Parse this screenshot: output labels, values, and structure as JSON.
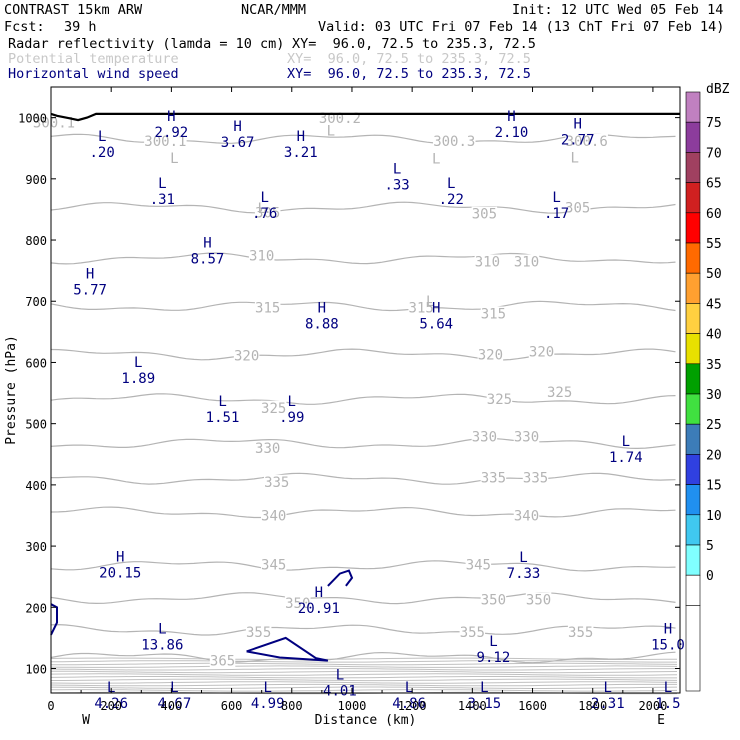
{
  "header": {
    "model": "CONTRAST 15km ARW",
    "org": "NCAR/MMM",
    "init": "Init: 12 UTC Wed 05 Feb 14",
    "fcst_label": "Fcst:",
    "fcst_value": "39 h",
    "valid": "Valid: 03 UTC Fri 07 Feb 14 (13 ChT Fri 07 Feb 14)",
    "fields": [
      {
        "name": "Radar reflectivity (lamda = 10 cm)",
        "xy": "XY=  96.0, 72.5 to 235.3, 72.5",
        "color": "#000000"
      },
      {
        "name": "Potential temperature",
        "xy": "XY=  96.0, 72.5 to 235.3, 72.5",
        "color": "#c8c8c8"
      },
      {
        "name": "Horizontal wind speed",
        "xy": "XY=  96.0, 72.5 to 235.3, 72.5",
        "color": "#000080"
      }
    ]
  },
  "chart_data": {
    "type": "cross-section",
    "xlabel": "Distance (km)",
    "ylabel": "Pressure (hPa)",
    "xlim": [
      0,
      2090
    ],
    "ylim": [
      1050,
      60
    ],
    "x_ticks": [
      0,
      200,
      400,
      600,
      800,
      1000,
      1200,
      1400,
      1600,
      1800,
      2000
    ],
    "y_ticks": [
      100,
      200,
      300,
      400,
      500,
      600,
      700,
      800,
      900,
      1000
    ],
    "x_ends": {
      "left": "W",
      "right": "E"
    },
    "colorbar": {
      "unit": "dBZ",
      "levels": [
        "75",
        "70",
        "65",
        "60",
        "55",
        "50",
        "45",
        "40",
        "35",
        "30",
        "25",
        "20",
        "15",
        "10",
        "5",
        "0"
      ],
      "colors": [
        "#c080c0",
        "#8c3c9c",
        "#a04060",
        "#d02020",
        "#ff0000",
        "#ff6a00",
        "#ffa030",
        "#ffd040",
        "#e8e000",
        "#00a000",
        "#40e040",
        "#3c7cb8",
        "#3040e0",
        "#2090f0",
        "#40c8f0",
        "#80ffff",
        "#ffffff"
      ]
    },
    "theta_isentropes": [
      {
        "value": 365,
        "p": 118
      },
      {
        "value": 355,
        "p": 163
      },
      {
        "value": 350,
        "p": 215
      },
      {
        "value": 345,
        "p": 268
      },
      {
        "value": 340,
        "p": 355
      },
      {
        "value": 335,
        "p": 410
      },
      {
        "value": 330,
        "p": 468
      },
      {
        "value": 325,
        "p": 540
      },
      {
        "value": 320,
        "p": 613
      },
      {
        "value": 315,
        "p": 692
      },
      {
        "value": 310,
        "p": 770
      },
      {
        "value": 305,
        "p": 853
      },
      {
        "value": 300,
        "p": 965
      }
    ],
    "theta_labels": [
      {
        "text": "365",
        "x": 570,
        "p": 113
      },
      {
        "text": "355",
        "x": 690,
        "p": 160
      },
      {
        "text": "355",
        "x": 1400,
        "p": 160
      },
      {
        "text": "355",
        "x": 1760,
        "p": 160
      },
      {
        "text": "350",
        "x": 820,
        "p": 207
      },
      {
        "text": "350",
        "x": 1470,
        "p": 213
      },
      {
        "text": "350",
        "x": 1620,
        "p": 213
      },
      {
        "text": "345",
        "x": 740,
        "p": 270
      },
      {
        "text": "345",
        "x": 1420,
        "p": 270
      },
      {
        "text": "340",
        "x": 740,
        "p": 350
      },
      {
        "text": "340",
        "x": 1580,
        "p": 350
      },
      {
        "text": "335",
        "x": 750,
        "p": 405
      },
      {
        "text": "335",
        "x": 1470,
        "p": 412
      },
      {
        "text": "335",
        "x": 1610,
        "p": 412
      },
      {
        "text": "330",
        "x": 720,
        "p": 460
      },
      {
        "text": "330",
        "x": 1440,
        "p": 479
      },
      {
        "text": "330",
        "x": 1580,
        "p": 479
      },
      {
        "text": "325",
        "x": 740,
        "p": 526
      },
      {
        "text": "325",
        "x": 1490,
        "p": 540
      },
      {
        "text": "325",
        "x": 1690,
        "p": 552
      },
      {
        "text": "320",
        "x": 650,
        "p": 611
      },
      {
        "text": "320",
        "x": 1460,
        "p": 613
      },
      {
        "text": "320",
        "x": 1630,
        "p": 618
      },
      {
        "text": "315",
        "x": 720,
        "p": 690
      },
      {
        "text": "315",
        "x": 1230,
        "p": 690
      },
      {
        "text": "315",
        "x": 1470,
        "p": 680
      },
      {
        "text": "310",
        "x": 700,
        "p": 775
      },
      {
        "text": "310",
        "x": 1450,
        "p": 765
      },
      {
        "text": "310",
        "x": 1580,
        "p": 765
      },
      {
        "text": "305",
        "x": 720,
        "p": 845
      },
      {
        "text": "305",
        "x": 1440,
        "p": 843
      },
      {
        "text": "305",
        "x": 1750,
        "p": 853
      },
      {
        "text": "300.1",
        "x": 10,
        "p": 992
      },
      {
        "text": "300.1",
        "x": 380,
        "p": 962
      },
      {
        "text": "300.2",
        "x": 960,
        "p": 999
      },
      {
        "text": "300.3",
        "x": 1340,
        "p": 962
      },
      {
        "text": "300.6",
        "x": 1780,
        "p": 962
      }
    ],
    "theta_marks": [
      {
        "label": "L",
        "x": 410,
        "p": 934
      },
      {
        "label": "L",
        "x": 1280,
        "p": 933
      },
      {
        "label": "L",
        "x": 1740,
        "p": 935
      },
      {
        "label": "L",
        "x": 930,
        "p": 979
      },
      {
        "label": "L",
        "x": 1260,
        "p": 700
      },
      {
        "label": "L",
        "x": 700,
        "p": 852
      }
    ],
    "wind_extrema": [
      {
        "type": "L",
        "value": "4.26",
        "x": 200,
        "p": 70
      },
      {
        "type": "L",
        "value": "4.67",
        "x": 410,
        "p": 70
      },
      {
        "type": "L",
        "value": "4.99",
        "x": 720,
        "p": 70
      },
      {
        "type": "L",
        "value": "4.01",
        "x": 960,
        "p": 90
      },
      {
        "type": "L",
        "value": "4.86",
        "x": 1190,
        "p": 70
      },
      {
        "type": "L",
        "value": "3.15",
        "x": 1440,
        "p": 70
      },
      {
        "type": "L",
        "value": "2.31",
        "x": 1850,
        "p": 70
      },
      {
        "type": "L",
        "value": "1.5",
        "x": 2050,
        "p": 70
      },
      {
        "type": "L",
        "value": "9.12",
        "x": 1470,
        "p": 145
      },
      {
        "type": "L",
        "value": "13.86",
        "x": 370,
        "p": 165
      },
      {
        "type": "H",
        "value": "15.0",
        "x": 2050,
        "p": 165
      },
      {
        "type": "H",
        "value": "20.91",
        "x": 890,
        "p": 225
      },
      {
        "type": "H",
        "value": "20.15",
        "x": 230,
        "p": 283
      },
      {
        "type": "L",
        "value": "7.33",
        "x": 1570,
        "p": 282
      },
      {
        "type": "L",
        "value": "1.74",
        "x": 1910,
        "p": 472
      },
      {
        "type": "L",
        "value": "1.51",
        "x": 570,
        "p": 537
      },
      {
        "type": "L",
        "value": ".99",
        "x": 800,
        "p": 537
      },
      {
        "type": "L",
        "value": "1.89",
        "x": 290,
        "p": 601
      },
      {
        "type": "H",
        "value": "8.88",
        "x": 900,
        "p": 690
      },
      {
        "type": "H",
        "value": "5.64",
        "x": 1280,
        "p": 690
      },
      {
        "type": "H",
        "value": "5.77",
        "x": 130,
        "p": 745
      },
      {
        "type": "H",
        "value": "8.57",
        "x": 520,
        "p": 796
      },
      {
        "type": "L",
        "value": ".76",
        "x": 710,
        "p": 870
      },
      {
        "type": "L",
        "value": ".17",
        "x": 1680,
        "p": 870
      },
      {
        "type": "L",
        "value": ".31",
        "x": 370,
        "p": 893
      },
      {
        "type": "L",
        "value": ".22",
        "x": 1330,
        "p": 893
      },
      {
        "type": "L",
        "value": ".33",
        "x": 1150,
        "p": 917
      },
      {
        "type": "L",
        "value": ".20",
        "x": 170,
        "p": 970
      },
      {
        "type": "H",
        "value": "3.67",
        "x": 620,
        "p": 986
      },
      {
        "type": "H",
        "value": "3.21",
        "x": 830,
        "p": 970
      },
      {
        "type": "H",
        "value": "2.92",
        "x": 400,
        "p": 1003
      },
      {
        "type": "H",
        "value": "2.10",
        "x": 1530,
        "p": 1003
      },
      {
        "type": "H",
        "value": "2.77",
        "x": 1750,
        "p": 990
      }
    ],
    "reflectivity_contours": [
      {
        "level": "0",
        "points": [
          [
            650,
            128
          ],
          [
            780,
            150
          ],
          [
            880,
            117
          ],
          [
            920,
            113
          ],
          [
            760,
            118
          ],
          [
            650,
            128
          ]
        ]
      },
      {
        "level": "0",
        "points": [
          [
            920,
            235
          ],
          [
            960,
            255
          ],
          [
            990,
            260
          ],
          [
            1000,
            248
          ],
          [
            980,
            235
          ]
        ]
      },
      {
        "level": "0",
        "points": [
          [
            0,
            155
          ],
          [
            20,
            175
          ],
          [
            20,
            200
          ],
          [
            0,
            205
          ]
        ]
      }
    ],
    "terrain": [
      [
        0,
        1006
      ],
      [
        20,
        1003
      ],
      [
        60,
        999
      ],
      [
        90,
        996
      ],
      [
        120,
        1000
      ],
      [
        150,
        1006
      ],
      [
        2090,
        1006
      ]
    ]
  }
}
